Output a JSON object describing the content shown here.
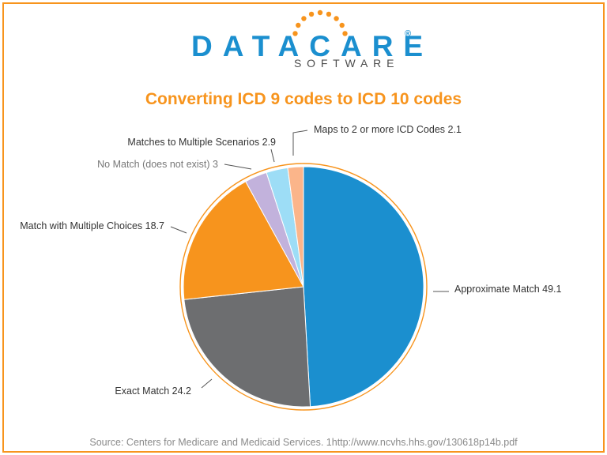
{
  "brand": {
    "name": "DATACARE",
    "registered": "®",
    "tagline": "SOFTWARE",
    "colors": {
      "orange": "#f7941d",
      "blue": "#1b8fcf"
    }
  },
  "chart_data": {
    "type": "pie",
    "title": "Converting ICD 9 codes to ICD 10 codes",
    "start": "12 o'clock",
    "direction": "clockwise",
    "slices": [
      {
        "label": "Approximate Match",
        "value": 49.1,
        "color": "#1b8fcf"
      },
      {
        "label": "Exact Match",
        "value": 24.2,
        "color": "#6d6e70"
      },
      {
        "label": "Match with Multiple Choices",
        "value": 18.7,
        "color": "#f7941d"
      },
      {
        "label": "No Match (does not exist)",
        "value": 3,
        "color": "#c2b2dc"
      },
      {
        "label": "Matches to Multiple Scenarios",
        "value": 2.9,
        "color": "#9dddf6"
      },
      {
        "label": "Maps to 2 or more ICD Codes",
        "value": 2.1,
        "color": "#fbb58a"
      }
    ]
  },
  "source": "Source: Centers for Medicare and Medicaid Services. 1http://www.ncvhs.hhs.gov/130618p14b.pdf"
}
